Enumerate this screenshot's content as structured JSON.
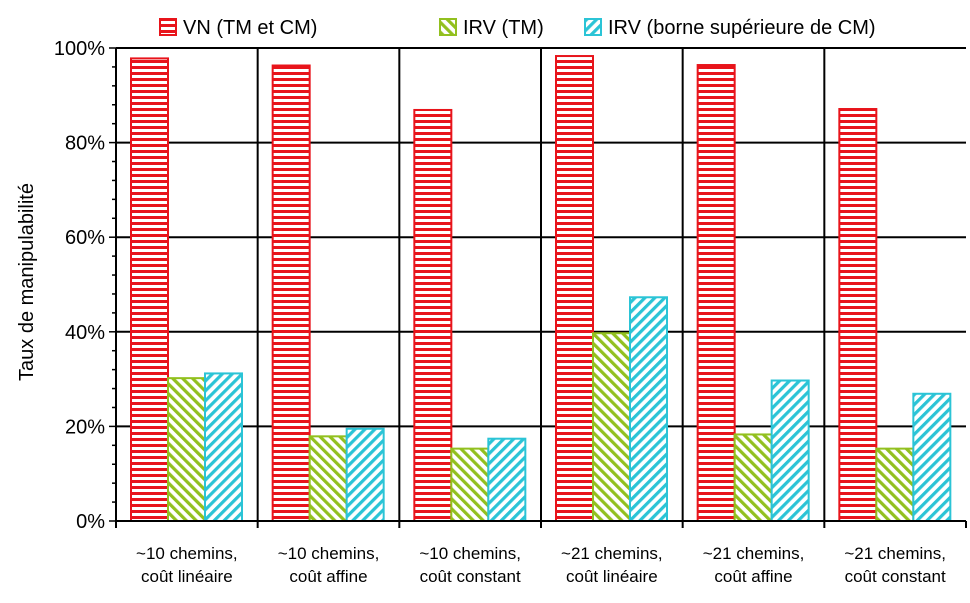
{
  "chart_data": {
    "type": "bar",
    "ylabel": "Taux de manipulabilité",
    "ylim": [
      0,
      100
    ],
    "yticks": [
      "0%",
      "20%",
      "40%",
      "60%",
      "80%",
      "100%"
    ],
    "categories": [
      [
        "~10 chemins,",
        "coût linéaire"
      ],
      [
        "~10 chemins,",
        "coût affine"
      ],
      [
        "~10 chemins,",
        "coût constant"
      ],
      [
        "~21 chemins,",
        "coût linéaire"
      ],
      [
        "~21 chemins,",
        "coût affine"
      ],
      [
        "~21 chemins,",
        "coût constant"
      ]
    ],
    "series": [
      {
        "name": "VN (TM et CM)",
        "values": [
          97.8,
          96.3,
          86.9,
          98.3,
          96.4,
          87.1
        ],
        "color": "#e8141b",
        "pattern": "horizontal-stripes"
      },
      {
        "name": "IRV (TM)",
        "values": [
          30.2,
          17.9,
          15.3,
          39.7,
          18.3,
          15.3
        ],
        "color": "#92c01f",
        "pattern": "diagonal-stripes"
      },
      {
        "name": "IRV (borne supérieure de CM)",
        "values": [
          31.2,
          19.5,
          17.4,
          47.3,
          29.7,
          26.9
        ],
        "color": "#2bc4d6",
        "pattern": "diagonal-stripes"
      }
    ],
    "grid": true,
    "legend": "top"
  }
}
